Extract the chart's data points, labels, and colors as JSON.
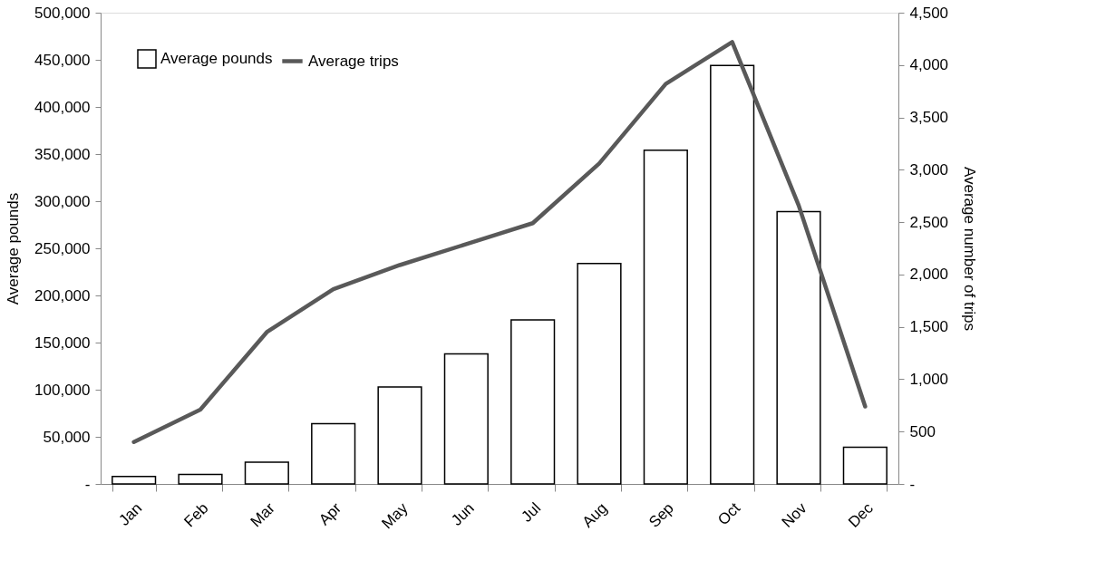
{
  "chart_data": {
    "type": "bar",
    "categories": [
      "Jan",
      "Feb",
      "Mar",
      "Apr",
      "May",
      "Jun",
      "Jul",
      "Aug",
      "Sep",
      "Oct",
      "Nov",
      "Dec"
    ],
    "ylabel": "Average pounds",
    "y2label": "Average number of trips",
    "ylim": [
      0,
      500000
    ],
    "yticks": [
      {
        "value": 0,
        "label": "-"
      },
      {
        "value": 50000,
        "label": "50,000"
      },
      {
        "value": 100000,
        "label": "100,000"
      },
      {
        "value": 150000,
        "label": "150,000"
      },
      {
        "value": 200000,
        "label": "200,000"
      },
      {
        "value": 250000,
        "label": "250,000"
      },
      {
        "value": 300000,
        "label": "300,000"
      },
      {
        "value": 350000,
        "label": "350,000"
      },
      {
        "value": 400000,
        "label": "400,000"
      },
      {
        "value": 450000,
        "label": "450,000"
      },
      {
        "value": 500000,
        "label": "500,000"
      }
    ],
    "y2lim": [
      0,
      4500
    ],
    "y2ticks": [
      {
        "value": 0,
        "label": "-"
      },
      500,
      {
        "value": 1000,
        "label": "1,000"
      },
      {
        "value": 1500,
        "label": "1,500"
      },
      {
        "value": 2000,
        "label": "2,000"
      },
      {
        "value": 2500,
        "label": "2,500"
      },
      {
        "value": 3000,
        "label": "3,000"
      },
      {
        "value": 3500,
        "label": "3,500"
      },
      {
        "value": 4000,
        "label": "4,000"
      },
      {
        "value": 4500,
        "label": "4,500"
      }
    ],
    "legend": "top left",
    "grid": false,
    "series": [
      {
        "name": "Average pounds",
        "color": "#ffffff",
        "values": [
          8000,
          10000,
          23000,
          64000,
          103000,
          138000,
          174000,
          234000,
          354000,
          444000,
          289000,
          39000
        ]
      },
      {
        "name": "Average trips",
        "type": "line",
        "axis": "y2",
        "color": "#595959",
        "values": [
          400,
          710,
          1450,
          1860,
          2090,
          2290,
          2490,
          3060,
          3820,
          4220,
          2660,
          740
        ]
      }
    ]
  }
}
